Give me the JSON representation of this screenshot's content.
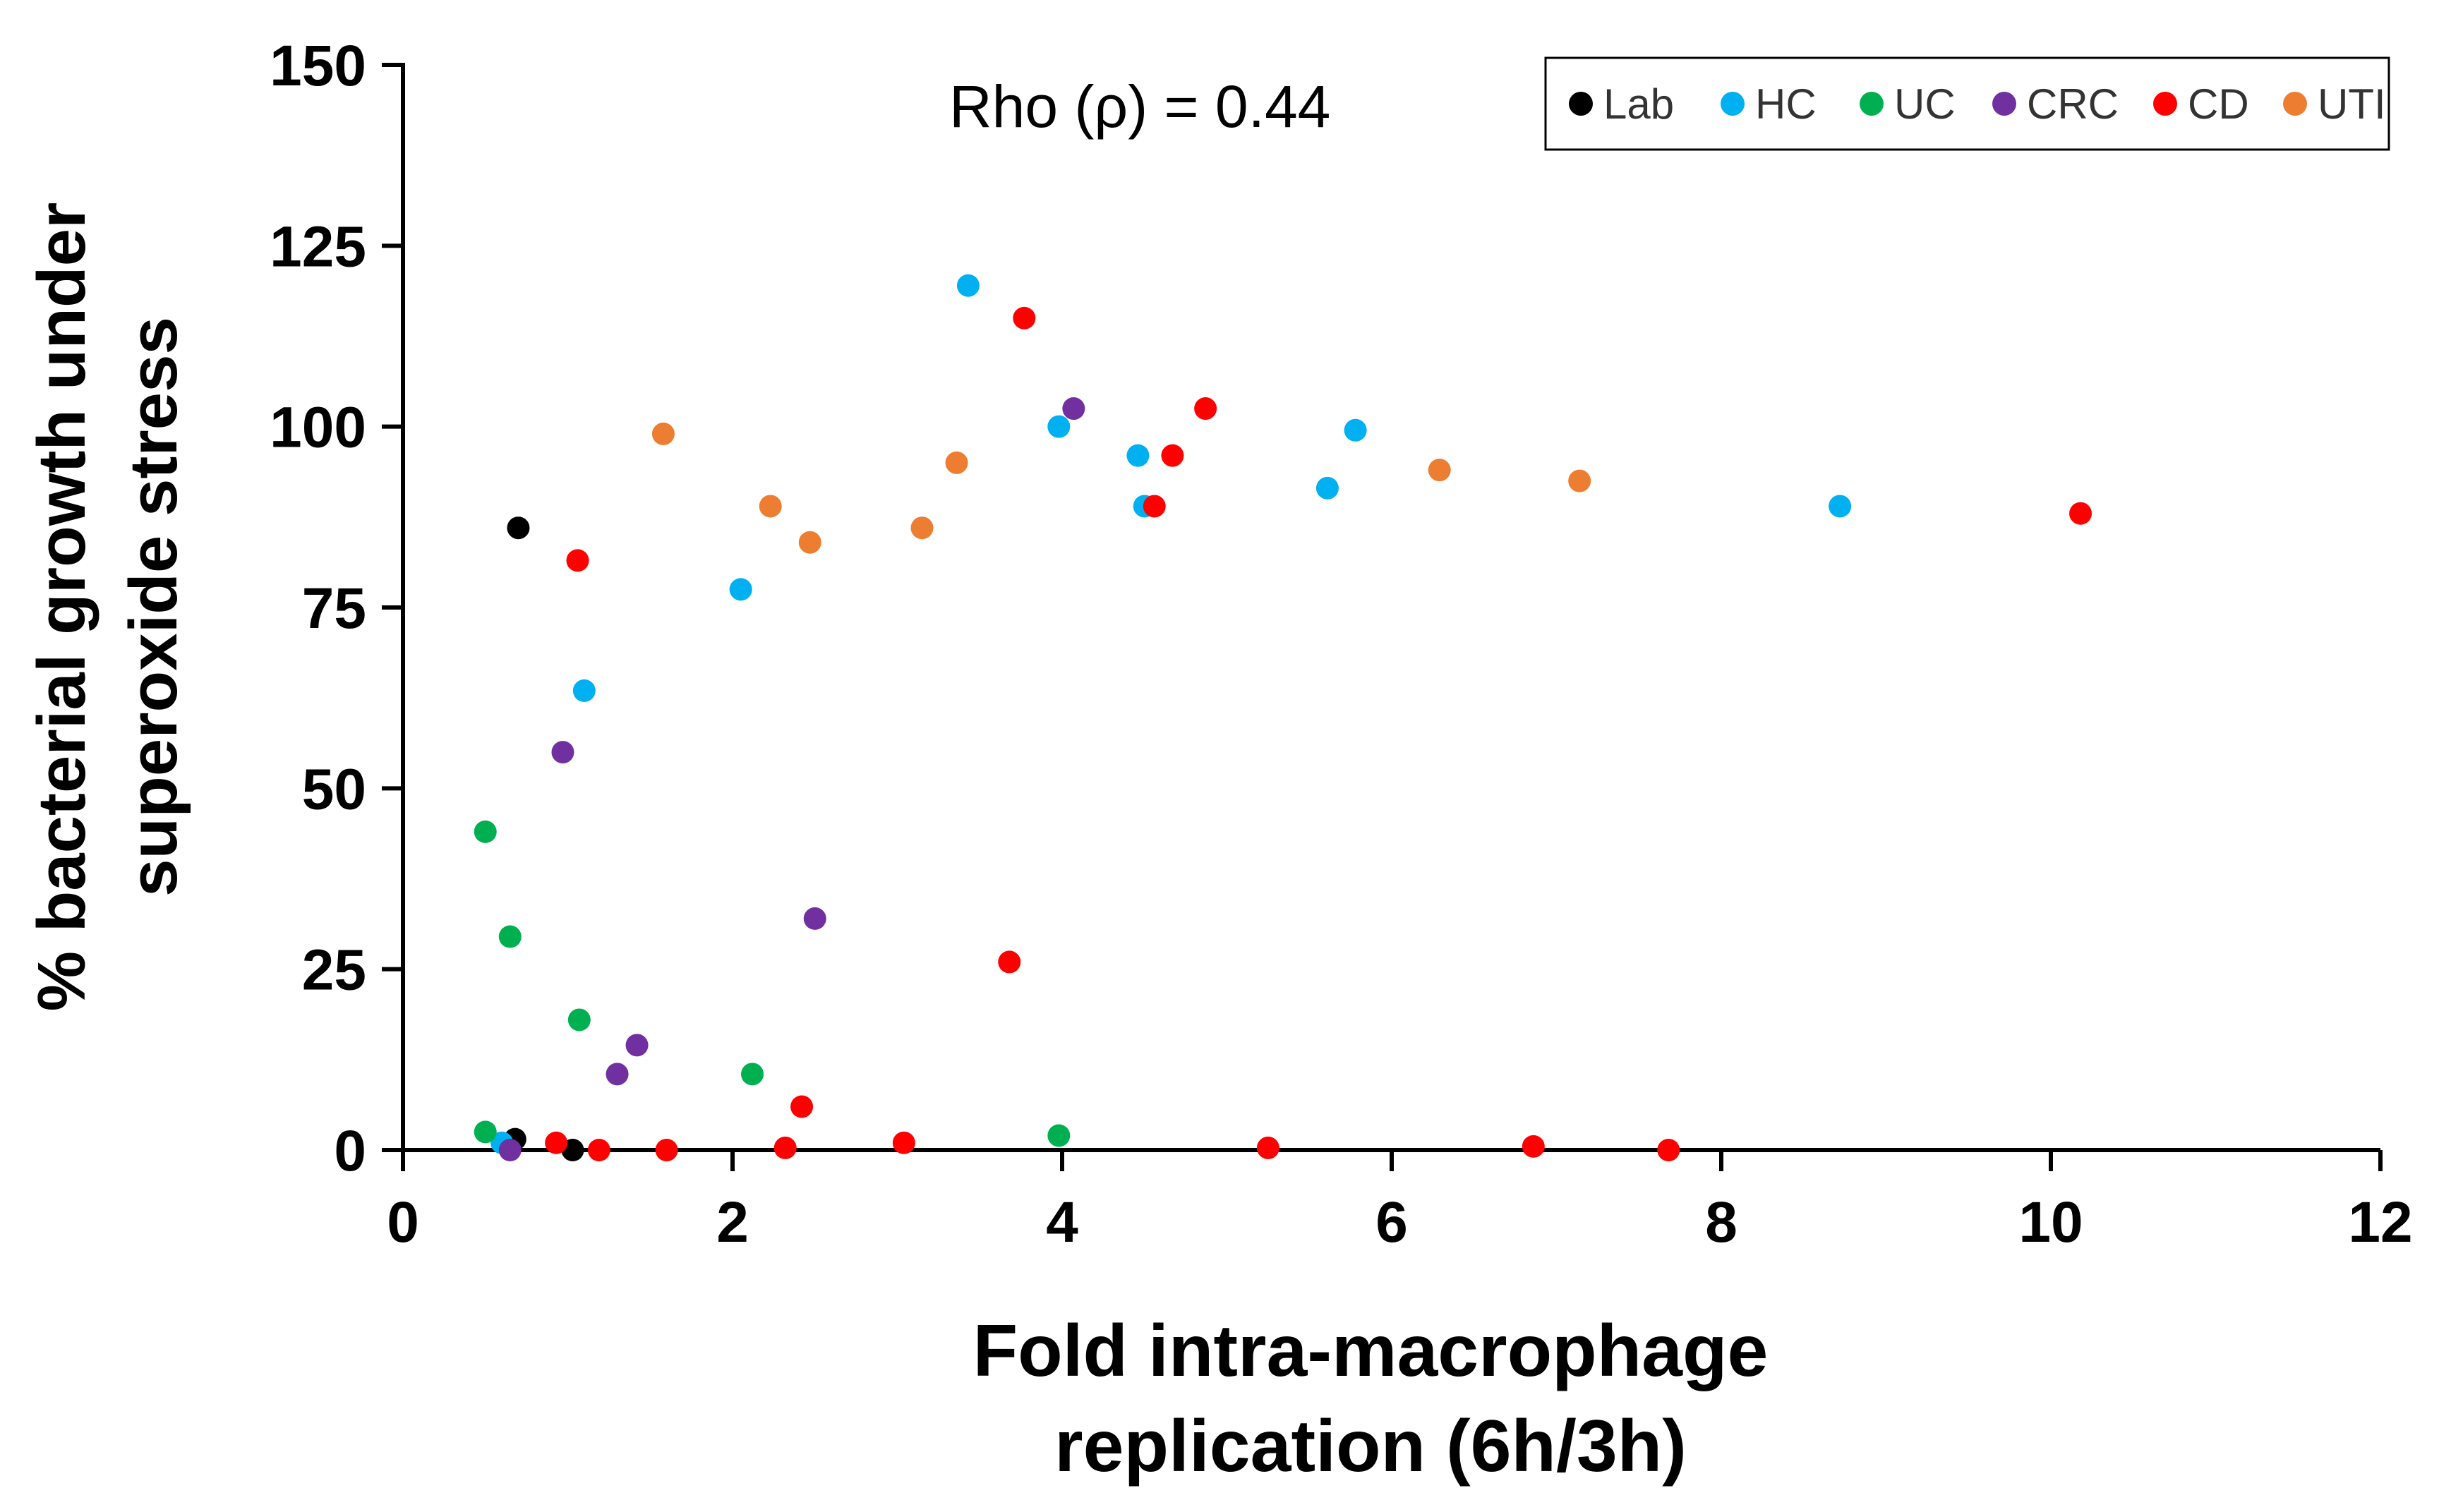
{
  "chart_data": {
    "type": "scatter",
    "title": "",
    "annotation": "Rho (ρ) = 0.44",
    "xlabel_lines": [
      "Fold intra-macrophage",
      "replication (6h/3h)"
    ],
    "ylabel_lines": [
      "% bacterial growth under",
      "superoxide stress"
    ],
    "xlim": [
      0,
      12
    ],
    "ylim": [
      0,
      150
    ],
    "xticks": [
      0,
      2,
      4,
      6,
      8,
      10,
      12
    ],
    "yticks": [
      0,
      25,
      50,
      75,
      100,
      125,
      150
    ],
    "xtick_labels": [
      "0",
      "2",
      "4",
      "6",
      "8",
      "10",
      "12"
    ],
    "ytick_labels": [
      "0",
      "25",
      "50",
      "75",
      "100",
      "125",
      "150"
    ],
    "grid": false,
    "legend_position": "top-right",
    "series": [
      {
        "name": "Lab",
        "color": "#000000",
        "points": [
          [
            0.7,
            86
          ],
          [
            0.68,
            1.5
          ],
          [
            1.03,
            0
          ]
        ]
      },
      {
        "name": "HC",
        "color": "#00B0F0",
        "points": [
          [
            3.43,
            119.5
          ],
          [
            3.98,
            100
          ],
          [
            5.78,
            99.5
          ],
          [
            4.46,
            96
          ],
          [
            4.5,
            89
          ],
          [
            5.61,
            91.5
          ],
          [
            8.72,
            89
          ],
          [
            2.05,
            77.5
          ],
          [
            1.1,
            63.5
          ],
          [
            0.6,
            1
          ]
        ]
      },
      {
        "name": "UC",
        "color": "#00B050",
        "points": [
          [
            0.5,
            44
          ],
          [
            0.65,
            29.5
          ],
          [
            1.07,
            18
          ],
          [
            2.12,
            10.5
          ],
          [
            0.5,
            2.5
          ],
          [
            3.98,
            2
          ]
        ]
      },
      {
        "name": "CRC",
        "color": "#7030A0",
        "points": [
          [
            4.07,
            102.5
          ],
          [
            0.97,
            55
          ],
          [
            2.5,
            32
          ],
          [
            1.42,
            14.5
          ],
          [
            1.3,
            10.5
          ],
          [
            0.65,
            0
          ]
        ]
      },
      {
        "name": "CD",
        "color": "#FF0000",
        "points": [
          [
            3.77,
            115
          ],
          [
            4.87,
            102.5
          ],
          [
            4.67,
            96
          ],
          [
            4.56,
            89
          ],
          [
            10.18,
            88
          ],
          [
            1.06,
            81.5
          ],
          [
            3.68,
            26
          ],
          [
            2.42,
            6
          ],
          [
            0.93,
            1
          ],
          [
            1.19,
            0
          ],
          [
            1.6,
            0
          ],
          [
            2.32,
            0.3
          ],
          [
            3.04,
            1
          ],
          [
            5.25,
            0.3
          ],
          [
            6.86,
            0.5
          ],
          [
            7.68,
            0
          ]
        ]
      },
      {
        "name": "UTI",
        "color": "#ED7D31",
        "points": [
          [
            1.58,
            99
          ],
          [
            3.36,
            95
          ],
          [
            6.29,
            94
          ],
          [
            7.14,
            92.5
          ],
          [
            2.23,
            89
          ],
          [
            2.47,
            84
          ],
          [
            3.15,
            86
          ]
        ]
      }
    ]
  }
}
